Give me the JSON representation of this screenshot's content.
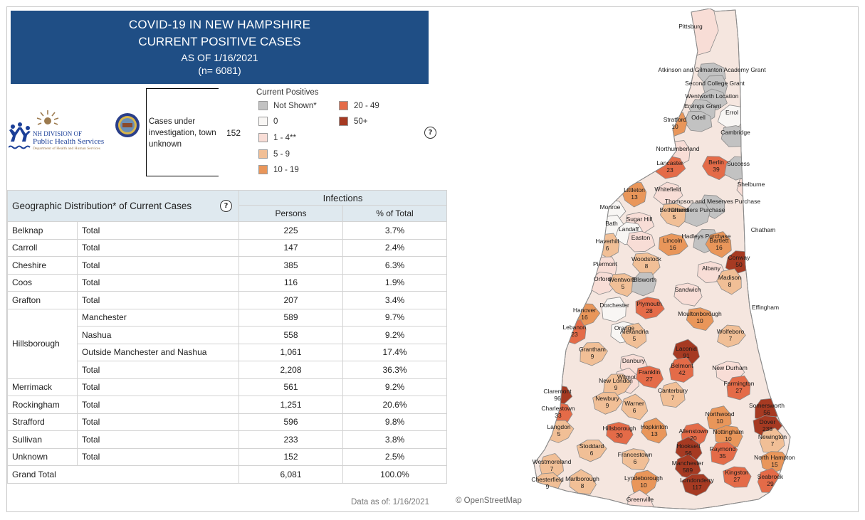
{
  "header": {
    "title_line1": "COVID-19 IN NEW HAMPSHIRE",
    "title_line2": "CURRENT POSITIVE CASES",
    "as_of": "AS OF 1/16/2021",
    "n": "(n= 6081)"
  },
  "logo": {
    "line1": "NH DIVISION OF",
    "line2": "Public Health Services",
    "line3": "Department of Health and Human Services"
  },
  "unknown_town": {
    "label": "Cases under investigation, town unknown",
    "value": "152"
  },
  "legend": {
    "title": "Current Positives",
    "items": [
      {
        "label": "Not Shown*",
        "color": "#c2c2c2"
      },
      {
        "label": "0",
        "color": "#f8f6f4"
      },
      {
        "label": "1 - 4**",
        "color": "#f8ddd6"
      },
      {
        "label": "5 - 9",
        "color": "#f1bf96"
      },
      {
        "label": "10 - 19",
        "color": "#e9965a"
      },
      {
        "label": "20 - 49",
        "color": "#e46b48"
      },
      {
        "label": "50+",
        "color": "#a63a22"
      }
    ],
    "help_icon": "?"
  },
  "table": {
    "title": "Geographic Distribution* of Current Cases",
    "help_icon": "?",
    "group_header": "Infections",
    "col_persons": "Persons",
    "col_pct": "% of Total",
    "rows": [
      {
        "county": "Belknap",
        "sub": "Total",
        "persons": "225",
        "pct": "3.7%"
      },
      {
        "county": "Carroll",
        "sub": "Total",
        "persons": "147",
        "pct": "2.4%"
      },
      {
        "county": "Cheshire",
        "sub": "Total",
        "persons": "385",
        "pct": "6.3%"
      },
      {
        "county": "Coos",
        "sub": "Total",
        "persons": "116",
        "pct": "1.9%"
      },
      {
        "county": "Grafton",
        "sub": "Total",
        "persons": "207",
        "pct": "3.4%"
      }
    ],
    "hillsborough": {
      "county": "Hillsborough",
      "rows": [
        {
          "sub": "Manchester",
          "persons": "589",
          "pct": "9.7%"
        },
        {
          "sub": "Nashua",
          "persons": "558",
          "pct": "9.2%"
        },
        {
          "sub": "Outside Manchester and Nashua",
          "persons": "1,061",
          "pct": "17.4%"
        },
        {
          "sub": "Total",
          "persons": "2,208",
          "pct": "36.3%"
        }
      ]
    },
    "rows_after": [
      {
        "county": "Merrimack",
        "sub": "Total",
        "persons": "561",
        "pct": "9.2%"
      },
      {
        "county": "Rockingham",
        "sub": "Total",
        "persons": "1,251",
        "pct": "20.6%"
      },
      {
        "county": "Strafford",
        "sub": "Total",
        "persons": "596",
        "pct": "9.8%"
      },
      {
        "county": "Sullivan",
        "sub": "Total",
        "persons": "233",
        "pct": "3.8%"
      },
      {
        "county": "Unknown",
        "sub": "Total",
        "persons": "152",
        "pct": "2.5%"
      }
    ],
    "grand_total": {
      "label": "Grand Total",
      "persons": "6,081",
      "pct": "100.0%"
    }
  },
  "footer": {
    "data_as_of": "Data as of:  1/16/2021",
    "attribution": "© OpenStreetMap"
  },
  "map": {
    "towns": [
      {
        "name": "Pittsburg",
        "count": "",
        "cat": "1-4"
      },
      {
        "name": "Atkinson and Gilmanton Academy Grant",
        "count": "",
        "cat": "not-shown"
      },
      {
        "name": "Second College Grant",
        "count": "",
        "cat": "not-shown"
      },
      {
        "name": "Wentworth Location",
        "count": "",
        "cat": "not-shown"
      },
      {
        "name": "Ervings Grant",
        "count": "",
        "cat": "not-shown"
      },
      {
        "name": "Errol",
        "count": "",
        "cat": "0"
      },
      {
        "name": "Odell",
        "count": "",
        "cat": "not-shown"
      },
      {
        "name": "Stratford",
        "count": "10",
        "cat": "10-19"
      },
      {
        "name": "Cambridge",
        "count": "",
        "cat": "not-shown"
      },
      {
        "name": "Northumberland",
        "count": "",
        "cat": "1-4"
      },
      {
        "name": "Lancaster",
        "count": "23",
        "cat": "20-49"
      },
      {
        "name": "Berlin",
        "count": "39",
        "cat": "20-49"
      },
      {
        "name": "Success",
        "count": "",
        "cat": "not-shown"
      },
      {
        "name": "Shelburne",
        "count": "",
        "cat": "1-4"
      },
      {
        "name": "Littleton",
        "count": "13",
        "cat": "10-19"
      },
      {
        "name": "Whitefield",
        "count": "",
        "cat": "1-4"
      },
      {
        "name": "Thompson and Meserves Purchase",
        "count": "",
        "cat": "not-shown"
      },
      {
        "name": "Monroe",
        "count": "",
        "cat": "0"
      },
      {
        "name": "Bethlehem",
        "count": "5",
        "cat": "5-9"
      },
      {
        "name": "Chandlers Purchase",
        "count": "",
        "cat": "not-shown"
      },
      {
        "name": "Sugar Hill",
        "count": "",
        "cat": "1-4"
      },
      {
        "name": "Bath",
        "count": "",
        "cat": "0"
      },
      {
        "name": "Landaff",
        "count": "",
        "cat": "0"
      },
      {
        "name": "Chatham",
        "count": "",
        "cat": "1-4"
      },
      {
        "name": "Hadleys Purchase",
        "count": "",
        "cat": "not-shown"
      },
      {
        "name": "Easton",
        "count": "",
        "cat": "1-4"
      },
      {
        "name": "Haverhill",
        "count": "6",
        "cat": "5-9"
      },
      {
        "name": "Lincoln",
        "count": "16",
        "cat": "10-19"
      },
      {
        "name": "Bartlett",
        "count": "16",
        "cat": "10-19"
      },
      {
        "name": "Conway",
        "count": "50",
        "cat": "50+"
      },
      {
        "name": "Woodstock",
        "count": "8",
        "cat": "5-9"
      },
      {
        "name": "Piermont",
        "count": "",
        "cat": "1-4"
      },
      {
        "name": "Albany",
        "count": "",
        "cat": "1-4"
      },
      {
        "name": "Madison",
        "count": "8",
        "cat": "5-9"
      },
      {
        "name": "Orford",
        "count": "",
        "cat": "1-4"
      },
      {
        "name": "Wentworth",
        "count": "5",
        "cat": "5-9"
      },
      {
        "name": "Ellsworth",
        "count": "",
        "cat": "not-shown"
      },
      {
        "name": "Sandwich",
        "count": "",
        "cat": "1-4"
      },
      {
        "name": "Dorchester",
        "count": "",
        "cat": "0"
      },
      {
        "name": "Plymouth",
        "count": "28",
        "cat": "20-49"
      },
      {
        "name": "Effingham",
        "count": "",
        "cat": "1-4"
      },
      {
        "name": "Hanover",
        "count": "16",
        "cat": "10-19"
      },
      {
        "name": "Moultonborough",
        "count": "10",
        "cat": "10-19"
      },
      {
        "name": "Lebanon",
        "count": "23",
        "cat": "20-49"
      },
      {
        "name": "Orange",
        "count": "",
        "cat": "0"
      },
      {
        "name": "Alexandria",
        "count": "5",
        "cat": "5-9"
      },
      {
        "name": "Wolfeboro",
        "count": "7",
        "cat": "5-9"
      },
      {
        "name": "Laconia",
        "count": "91",
        "cat": "50+"
      },
      {
        "name": "Grantham",
        "count": "9",
        "cat": "5-9"
      },
      {
        "name": "Danbury",
        "count": "",
        "cat": "1-4"
      },
      {
        "name": "Belmont",
        "count": "42",
        "cat": "20-49"
      },
      {
        "name": "New Durham",
        "count": "",
        "cat": "1-4"
      },
      {
        "name": "Wilmot",
        "count": "",
        "cat": "1-4"
      },
      {
        "name": "New London",
        "count": "9",
        "cat": "5-9"
      },
      {
        "name": "Franklin",
        "count": "27",
        "cat": "20-49"
      },
      {
        "name": "Farmington",
        "count": "27",
        "cat": "20-49"
      },
      {
        "name": "Claremont",
        "count": "96",
        "cat": "50+"
      },
      {
        "name": "Canterbury",
        "count": "7",
        "cat": "5-9"
      },
      {
        "name": "Newbury",
        "count": "9",
        "cat": "5-9"
      },
      {
        "name": "Warner",
        "count": "6",
        "cat": "5-9"
      },
      {
        "name": "Somersworth",
        "count": "56",
        "cat": "50+"
      },
      {
        "name": "Charlestown",
        "count": "33",
        "cat": "20-49"
      },
      {
        "name": "Northwood",
        "count": "10",
        "cat": "10-19"
      },
      {
        "name": "Dover",
        "count": "238",
        "cat": "50+"
      },
      {
        "name": "Hopkinton",
        "count": "13",
        "cat": "10-19"
      },
      {
        "name": "Langdon",
        "count": "5",
        "cat": "5-9"
      },
      {
        "name": "Hillsborough",
        "count": "30",
        "cat": "20-49"
      },
      {
        "name": "Allenstown",
        "count": "20",
        "cat": "20-49"
      },
      {
        "name": "Nottingham",
        "count": "10",
        "cat": "10-19"
      },
      {
        "name": "Newington",
        "count": "7",
        "cat": "5-9"
      },
      {
        "name": "Stoddard",
        "count": "6",
        "cat": "5-9"
      },
      {
        "name": "Hooksett",
        "count": "56",
        "cat": "50+"
      },
      {
        "name": "Raymond",
        "count": "35",
        "cat": "20-49"
      },
      {
        "name": "Francestown",
        "count": "6",
        "cat": "5-9"
      },
      {
        "name": "Westmoreland",
        "count": "7",
        "cat": "5-9"
      },
      {
        "name": "North Hampton",
        "count": "15",
        "cat": "10-19"
      },
      {
        "name": "Manchester",
        "count": "589",
        "cat": "50+"
      },
      {
        "name": "Chesterfield",
        "count": "9",
        "cat": "5-9"
      },
      {
        "name": "Marlborough",
        "count": "8",
        "cat": "5-9"
      },
      {
        "name": "Lyndeborough",
        "count": "10",
        "cat": "10-19"
      },
      {
        "name": "Kingston",
        "count": "27",
        "cat": "20-49"
      },
      {
        "name": "Seabrook",
        "count": "29",
        "cat": "20-49"
      },
      {
        "name": "Londonderry",
        "count": "117",
        "cat": "50+"
      },
      {
        "name": "Greenville",
        "count": "",
        "cat": "1-4"
      }
    ]
  }
}
